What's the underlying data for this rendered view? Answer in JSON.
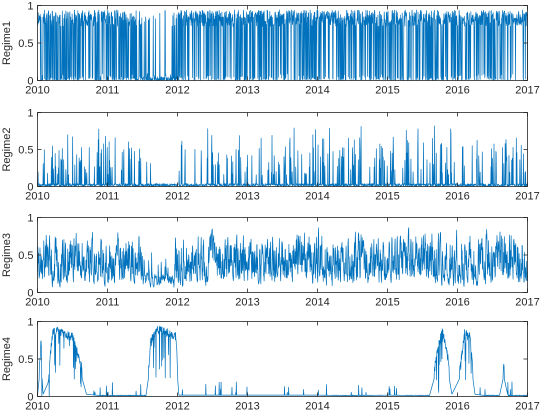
{
  "chart_data": [
    {
      "type": "line",
      "ylabel": "Regime1",
      "x_range": [
        2010,
        2017
      ],
      "ylim": [
        0,
        1
      ],
      "yticks": [
        "0",
        "0.5",
        "1"
      ],
      "xticks": [
        "2010",
        "2011",
        "2012",
        "2013",
        "2014",
        "2015",
        "2016",
        "2017"
      ],
      "line_color": "#0072BD",
      "gen": {
        "mode": "high",
        "seed": 11
      },
      "anchors": [
        [
          2010.0,
          0.85
        ],
        [
          2010.12,
          0.6
        ],
        [
          2010.3,
          0.55
        ],
        [
          2010.55,
          0.65
        ],
        [
          2010.85,
          0.75
        ],
        [
          2011.1,
          0.7
        ],
        [
          2011.4,
          0.4
        ],
        [
          2011.55,
          0.15
        ],
        [
          2011.72,
          0.08
        ],
        [
          2011.88,
          0.05
        ],
        [
          2012.0,
          0.5
        ],
        [
          2012.2,
          0.8
        ],
        [
          2012.5,
          0.75
        ],
        [
          2012.8,
          0.65
        ],
        [
          2013.1,
          0.65
        ],
        [
          2013.5,
          0.75
        ],
        [
          2013.8,
          0.55
        ],
        [
          2014.1,
          0.8
        ],
        [
          2014.5,
          0.7
        ],
        [
          2014.9,
          0.75
        ],
        [
          2015.2,
          0.7
        ],
        [
          2015.55,
          0.55
        ],
        [
          2015.8,
          0.6
        ],
        [
          2016.1,
          0.7
        ],
        [
          2016.5,
          0.7
        ],
        [
          2016.8,
          0.82
        ],
        [
          2017.0,
          0.85
        ]
      ]
    },
    {
      "type": "line",
      "ylabel": "Regime2",
      "x_range": [
        2010,
        2017
      ],
      "ylim": [
        0,
        1
      ],
      "yticks": [
        "0",
        "0.5",
        "1"
      ],
      "xticks": [
        "2010",
        "2011",
        "2012",
        "2013",
        "2014",
        "2015",
        "2016",
        "2017"
      ],
      "line_color": "#0072BD",
      "gen": {
        "mode": "spike",
        "seed": 22
      },
      "anchors": [
        [
          2010.0,
          0.2
        ],
        [
          2010.3,
          0.3
        ],
        [
          2010.6,
          0.32
        ],
        [
          2010.9,
          0.3
        ],
        [
          2011.3,
          0.28
        ],
        [
          2011.55,
          0.1
        ],
        [
          2011.8,
          0.03
        ],
        [
          2011.95,
          0.05
        ],
        [
          2012.2,
          0.3
        ],
        [
          2012.6,
          0.35
        ],
        [
          2013.0,
          0.3
        ],
        [
          2013.5,
          0.32
        ],
        [
          2014.0,
          0.3
        ],
        [
          2014.5,
          0.32
        ],
        [
          2015.0,
          0.3
        ],
        [
          2015.5,
          0.3
        ],
        [
          2016.0,
          0.3
        ],
        [
          2016.5,
          0.32
        ],
        [
          2017.0,
          0.3
        ]
      ]
    },
    {
      "type": "line",
      "ylabel": "Regime3",
      "x_range": [
        2010,
        2017
      ],
      "ylim": [
        0,
        1
      ],
      "yticks": [
        "0",
        "0.5",
        "1"
      ],
      "xticks": [
        "2010",
        "2011",
        "2012",
        "2013",
        "2014",
        "2015",
        "2016",
        "2017"
      ],
      "line_color": "#0072BD",
      "gen": {
        "mode": "mid",
        "seed": 33
      },
      "anchors": [
        [
          2010.0,
          0.45
        ],
        [
          2010.2,
          0.35
        ],
        [
          2010.4,
          0.22
        ],
        [
          2010.6,
          0.5
        ],
        [
          2010.9,
          0.55
        ],
        [
          2011.2,
          0.6
        ],
        [
          2011.45,
          0.45
        ],
        [
          2011.58,
          0.05
        ],
        [
          2011.75,
          0.08
        ],
        [
          2011.9,
          0.18
        ],
        [
          2012.1,
          0.32
        ],
        [
          2012.4,
          0.5
        ],
        [
          2012.7,
          0.55
        ],
        [
          2013.0,
          0.5
        ],
        [
          2013.4,
          0.55
        ],
        [
          2013.8,
          0.45
        ],
        [
          2014.2,
          0.5
        ],
        [
          2014.6,
          0.5
        ],
        [
          2015.0,
          0.45
        ],
        [
          2015.4,
          0.5
        ],
        [
          2015.7,
          0.4
        ],
        [
          2016.0,
          0.5
        ],
        [
          2016.4,
          0.45
        ],
        [
          2016.8,
          0.45
        ],
        [
          2017.0,
          0.2
        ]
      ]
    },
    {
      "type": "line",
      "ylabel": "Regime4",
      "x_range": [
        2010,
        2017
      ],
      "ylim": [
        0,
        1
      ],
      "yticks": [
        "0",
        "0.5",
        "1"
      ],
      "xticks": [
        "2010",
        "2011",
        "2012",
        "2013",
        "2014",
        "2015",
        "2016",
        "2017"
      ],
      "line_color": "#0072BD",
      "gen": {
        "mode": "low",
        "seed": 44
      },
      "anchors": [
        [
          2010.0,
          0.02
        ],
        [
          2010.05,
          0.8
        ],
        [
          2010.08,
          0.05
        ],
        [
          2010.15,
          0.3
        ],
        [
          2010.22,
          0.95
        ],
        [
          2010.38,
          0.9
        ],
        [
          2010.5,
          0.85
        ],
        [
          2010.62,
          0.5
        ],
        [
          2010.7,
          0.05
        ],
        [
          2010.9,
          0.02
        ],
        [
          2011.3,
          0.02
        ],
        [
          2011.55,
          0.02
        ],
        [
          2011.62,
          0.8
        ],
        [
          2011.7,
          0.95
        ],
        [
          2011.85,
          0.92
        ],
        [
          2011.98,
          0.85
        ],
        [
          2012.02,
          0.03
        ],
        [
          2012.4,
          0.03
        ],
        [
          2013.0,
          0.03
        ],
        [
          2013.5,
          0.03
        ],
        [
          2014.0,
          0.03
        ],
        [
          2014.5,
          0.02
        ],
        [
          2015.0,
          0.03
        ],
        [
          2015.6,
          0.02
        ],
        [
          2015.72,
          0.7
        ],
        [
          2015.78,
          0.95
        ],
        [
          2015.86,
          0.6
        ],
        [
          2015.92,
          0.05
        ],
        [
          2016.03,
          0.4
        ],
        [
          2016.1,
          0.9
        ],
        [
          2016.18,
          0.85
        ],
        [
          2016.25,
          0.05
        ],
        [
          2016.4,
          0.02
        ],
        [
          2016.6,
          0.02
        ],
        [
          2016.66,
          0.45
        ],
        [
          2016.72,
          0.02
        ],
        [
          2017.0,
          0.02
        ]
      ]
    }
  ]
}
